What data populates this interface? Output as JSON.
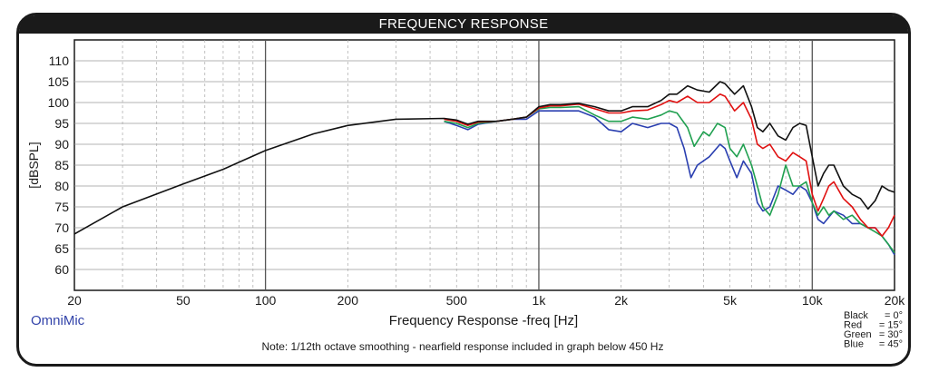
{
  "title": "FREQUENCY RESPONSE",
  "brand": "OmniMic",
  "note": "Note: 1/12th octave smoothing - nearfield response included in graph below 450 Hz",
  "colors": {
    "black": "#111111",
    "red": "#e01010",
    "green": "#20a050",
    "blue": "#2a3fb0"
  },
  "legend": [
    {
      "label": "Black",
      "value": "0°"
    },
    {
      "label": "Red",
      "value": "15°"
    },
    {
      "label": "Green",
      "value": "30°"
    },
    {
      "label": "Blue",
      "value": "45°"
    }
  ],
  "chart_data": {
    "type": "line",
    "title": "FREQUENCY RESPONSE",
    "xlabel": "Frequency Response -freq [Hz]",
    "ylabel": "[dBSPL]",
    "xscale": "log",
    "xlim": [
      20,
      20000
    ],
    "ylim": [
      55,
      115
    ],
    "grid": true,
    "y_ticks": [
      60,
      65,
      70,
      75,
      80,
      85,
      90,
      95,
      100,
      105,
      110
    ],
    "x_ticks": [
      20,
      50,
      100,
      200,
      500,
      1000,
      2000,
      5000,
      10000,
      20000
    ],
    "x_tick_labels": [
      "20",
      "50",
      "100",
      "200",
      "500",
      "1k",
      "2k",
      "5k",
      "10k",
      "20k"
    ],
    "series": [
      {
        "name": "Black",
        "color": "#111111",
        "x": [
          20,
          30,
          50,
          70,
          100,
          150,
          200,
          300,
          450,
          500,
          550,
          600,
          700,
          800,
          900,
          1000,
          1100,
          1200,
          1400,
          1600,
          1800,
          2000,
          2200,
          2500,
          2800,
          3000,
          3200,
          3500,
          3800,
          4200,
          4600,
          4800,
          5200,
          5600,
          6000,
          6300,
          6600,
          7000,
          7500,
          8000,
          8500,
          9000,
          9500,
          10000,
          10500,
          11000,
          11500,
          12000,
          13000,
          14000,
          15000,
          16000,
          17000,
          18000,
          19000,
          20000
        ],
        "y": [
          68.5,
          75,
          80.5,
          84,
          88.5,
          92.5,
          94.5,
          96,
          96.2,
          95.8,
          94.8,
          95.5,
          95.5,
          96,
          96.5,
          99,
          99.5,
          99.5,
          99.8,
          99,
          98,
          98,
          99,
          99,
          100.5,
          102,
          102,
          104,
          103,
          102.5,
          105,
          104.5,
          102,
          104,
          99,
          94,
          93,
          95,
          92,
          91,
          94,
          95,
          94.5,
          87,
          80,
          83,
          85,
          85,
          80,
          78,
          77,
          74.5,
          76.5,
          80,
          79,
          78.5
        ]
      },
      {
        "name": "Red",
        "color": "#e01010",
        "x": [
          450,
          500,
          550,
          600,
          700,
          800,
          900,
          1000,
          1100,
          1200,
          1400,
          1600,
          1800,
          2000,
          2200,
          2500,
          2800,
          3000,
          3200,
          3500,
          3800,
          4200,
          4600,
          4800,
          5200,
          5600,
          6000,
          6300,
          6600,
          7000,
          7500,
          8000,
          8500,
          9000,
          9500,
          10000,
          10500,
          11000,
          11500,
          12000,
          13000,
          14000,
          15000,
          16000,
          17000,
          18000,
          19000,
          20000
        ],
        "y": [
          96,
          95.5,
          94.5,
          95.3,
          95.5,
          96,
          96.5,
          98.7,
          99.2,
          99.2,
          99.6,
          98.5,
          97.5,
          97.5,
          98,
          98.2,
          99.5,
          100.5,
          100,
          101.5,
          100,
          100,
          102,
          101.5,
          98,
          100,
          96,
          90,
          89,
          90,
          87,
          86,
          88,
          87,
          86,
          78,
          74,
          77,
          80,
          81,
          77,
          75,
          72,
          70,
          70,
          68,
          70,
          73
        ]
      },
      {
        "name": "Green",
        "color": "#20a050",
        "x": [
          450,
          500,
          550,
          600,
          700,
          800,
          900,
          1000,
          1100,
          1200,
          1400,
          1600,
          1800,
          2000,
          2200,
          2500,
          2800,
          3000,
          3200,
          3500,
          3700,
          4000,
          4200,
          4500,
          4800,
          5000,
          5300,
          5600,
          6000,
          6300,
          6600,
          7000,
          7500,
          8000,
          8500,
          9000,
          9500,
          10000,
          10500,
          11000,
          11500,
          12000,
          13000,
          14000,
          15000,
          16000,
          17000,
          18000,
          19000,
          20000
        ],
        "y": [
          95.5,
          95,
          94,
          95,
          95.5,
          96,
          96.5,
          98.5,
          98.8,
          98.8,
          99,
          97,
          95.5,
          95.5,
          96.5,
          96,
          97,
          98,
          97.5,
          94,
          89.5,
          93,
          92,
          95,
          94,
          89,
          87,
          90,
          85,
          80,
          75,
          73,
          78,
          85,
          80,
          80,
          81,
          76,
          73,
          75,
          73,
          74,
          72,
          73,
          71,
          70,
          69,
          68,
          66,
          64
        ]
      },
      {
        "name": "Blue",
        "color": "#2a3fb0",
        "x": [
          450,
          500,
          550,
          600,
          700,
          800,
          900,
          1000,
          1100,
          1200,
          1400,
          1600,
          1800,
          2000,
          2200,
          2500,
          2800,
          3000,
          3200,
          3400,
          3600,
          3800,
          4200,
          4600,
          4800,
          5000,
          5300,
          5600,
          6000,
          6300,
          6600,
          7000,
          7500,
          8000,
          8500,
          9000,
          9500,
          10000,
          10500,
          11000,
          12000,
          13000,
          14000,
          15000,
          16000,
          17000,
          18000,
          19000,
          20000
        ],
        "y": [
          95.5,
          94.5,
          93.5,
          94.8,
          95.5,
          96,
          96,
          98,
          98,
          98,
          98,
          96.5,
          93.5,
          93,
          95,
          94,
          95,
          95,
          94,
          89,
          82,
          85,
          87,
          90,
          89,
          86,
          82,
          86,
          83,
          76,
          74,
          75,
          80,
          79,
          78,
          80,
          79,
          76,
          72,
          71,
          74,
          73,
          71,
          71,
          70,
          70,
          68,
          66,
          63.5
        ]
      }
    ]
  }
}
